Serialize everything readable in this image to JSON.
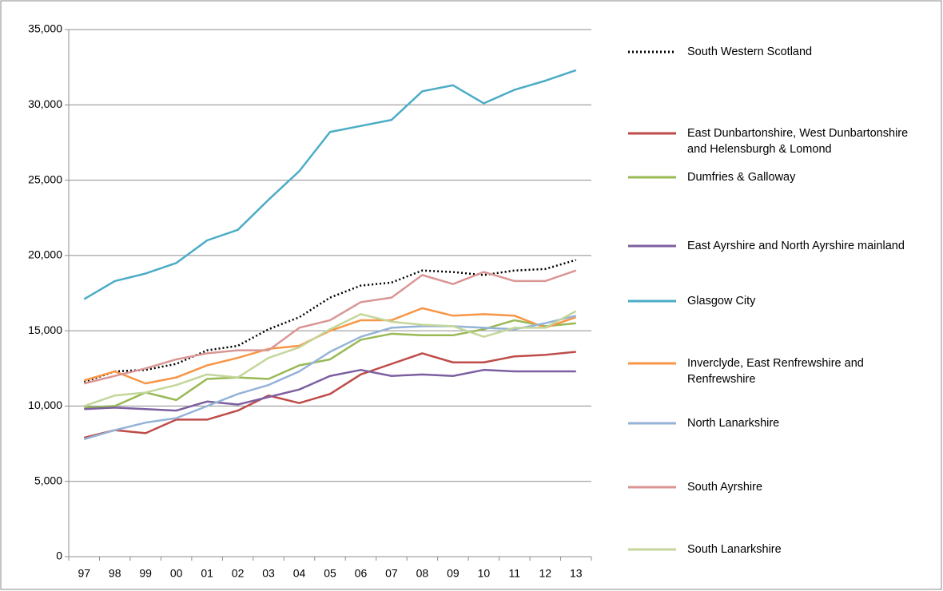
{
  "chart_data": {
    "type": "line",
    "categories": [
      "97",
      "98",
      "99",
      "00",
      "01",
      "02",
      "03",
      "04",
      "05",
      "06",
      "07",
      "08",
      "09",
      "10",
      "11",
      "12",
      "13"
    ],
    "ylim": [
      0,
      35000
    ],
    "yticks": [
      0,
      {
        "value": 5000,
        "label": "5,000"
      },
      {
        "value": 10000,
        "label": "10,000"
      },
      {
        "value": 15000,
        "label": "15,000"
      },
      {
        "value": 20000,
        "label": "20,000"
      },
      {
        "value": 25000,
        "label": "25,000"
      },
      {
        "value": 30000,
        "label": "30,000"
      },
      {
        "value": 35000,
        "label": "35,000"
      }
    ],
    "grid": true,
    "legend": "right",
    "series": [
      {
        "name": "South Western Scotland",
        "color": "#000000",
        "style": "dotted",
        "values": [
          11600,
          12300,
          12400,
          12800,
          13700,
          14000,
          15100,
          15900,
          17200,
          18000,
          18200,
          19000,
          18900,
          18700,
          19000,
          19100,
          19700
        ]
      },
      {
        "name": "East Dunbartonshire, West Dunbartonshire and Helensburgh & Lomond",
        "color": "#be4b48",
        "values": [
          7900,
          8400,
          8200,
          9100,
          9100,
          9700,
          10700,
          10200,
          10800,
          12100,
          12800,
          13500,
          12900,
          12900,
          13300,
          13400,
          13600
        ]
      },
      {
        "name": "Dumfries & Galloway",
        "color": "#98b954",
        "values": [
          9900,
          10000,
          10900,
          10400,
          11800,
          11900,
          11800,
          12700,
          13100,
          14400,
          14800,
          14700,
          14700,
          15100,
          15700,
          15300,
          15500
        ]
      },
      {
        "name": "East Ayrshire and North Ayrshire mainland",
        "color": "#7d5fa0",
        "values": [
          9800,
          9900,
          9800,
          9700,
          10300,
          10100,
          10600,
          11100,
          12000,
          12400,
          12000,
          12100,
          12000,
          12400,
          12300,
          12300,
          12300
        ]
      },
      {
        "name": "Glasgow City",
        "color": "#4bacc6",
        "values": [
          17100,
          18300,
          18800,
          19500,
          21000,
          21700,
          23700,
          25600,
          28200,
          28600,
          29000,
          30900,
          31300,
          30100,
          31000,
          31600,
          32300
        ]
      },
      {
        "name": "Inverclyde, East Renfrewshire and Renfrewshire",
        "color": "#f79646",
        "values": [
          11700,
          12300,
          11500,
          11900,
          12700,
          13200,
          13800,
          14000,
          15000,
          15700,
          15700,
          16500,
          16000,
          16100,
          16000,
          15200,
          15900
        ]
      },
      {
        "name": "North Lanarkshire",
        "color": "#95b3d7",
        "values": [
          7800,
          8400,
          8900,
          9200,
          10000,
          10800,
          11400,
          12300,
          13600,
          14600,
          15200,
          15300,
          15300,
          15200,
          15100,
          15500,
          16000
        ]
      },
      {
        "name": "South Ayrshire",
        "color": "#d99694",
        "values": [
          11500,
          12000,
          12500,
          13100,
          13500,
          13700,
          13700,
          15200,
          15700,
          16900,
          17200,
          18700,
          18100,
          18900,
          18300,
          18300,
          19000
        ]
      },
      {
        "name": "South Lanarkshire",
        "color": "#c3d69b",
        "values": [
          10000,
          10700,
          10900,
          11400,
          12100,
          11900,
          13200,
          13900,
          15100,
          16100,
          15600,
          15400,
          15300,
          14600,
          15200,
          15200,
          16300
        ]
      }
    ]
  }
}
